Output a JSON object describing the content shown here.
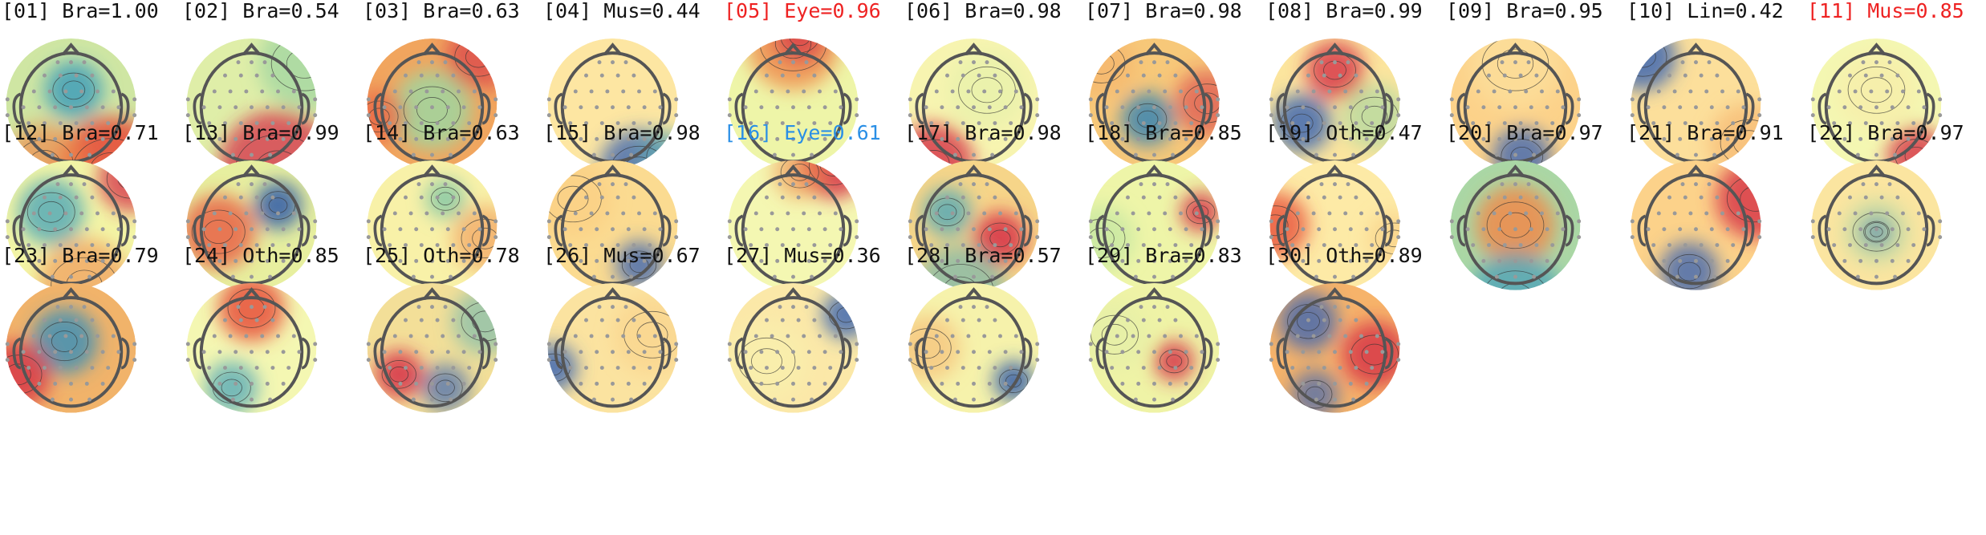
{
  "figure_title": "",
  "colors": {
    "normal_label": "#111111",
    "red_label": "#ee2222",
    "blue_label": "#2a8fe6",
    "head_outline": "#555555",
    "sensor_dot": "#999999",
    "contour": "#333333"
  },
  "components": [
    {
      "label": "[01] Bra=1.00",
      "color_class": ""
    },
    {
      "label": "[02] Bra=0.54",
      "color_class": ""
    },
    {
      "label": "[03] Bra=0.63",
      "color_class": ""
    },
    {
      "label": "[04] Mus=0.44",
      "color_class": ""
    },
    {
      "label": "[05] Eye=0.96",
      "color_class": "red"
    },
    {
      "label": "[06] Bra=0.98",
      "color_class": ""
    },
    {
      "label": "[07] Bra=0.98",
      "color_class": ""
    },
    {
      "label": "[08] Bra=0.99",
      "color_class": ""
    },
    {
      "label": "[09] Bra=0.95",
      "color_class": ""
    },
    {
      "label": "[10] Lin=0.42",
      "color_class": ""
    },
    {
      "label": "[11] Mus=0.85",
      "color_class": "red"
    },
    {
      "label": "[12] Bra=0.71",
      "color_class": ""
    },
    {
      "label": "[13] Bra=0.99",
      "color_class": ""
    },
    {
      "label": "[14] Bra=0.63",
      "color_class": ""
    },
    {
      "label": "[15] Bra=0.98",
      "color_class": ""
    },
    {
      "label": "[16] Eye=0.61",
      "color_class": "blue"
    },
    {
      "label": "[17] Bra=0.98",
      "color_class": ""
    },
    {
      "label": "[18] Bra=0.85",
      "color_class": ""
    },
    {
      "label": "[19] Oth=0.47",
      "color_class": ""
    },
    {
      "label": "[20] Bra=0.97",
      "color_class": ""
    },
    {
      "label": "[21] Bra=0.91",
      "color_class": ""
    },
    {
      "label": "[22] Bra=0.97",
      "color_class": ""
    },
    {
      "label": "[23] Bra=0.79",
      "color_class": ""
    },
    {
      "label": "[24] Oth=0.85",
      "color_class": ""
    },
    {
      "label": "[25] Oth=0.78",
      "color_class": ""
    },
    {
      "label": "[26] Mus=0.67",
      "color_class": ""
    },
    {
      "label": "[27] Mus=0.36",
      "color_class": ""
    },
    {
      "label": "[28] Bra=0.57",
      "color_class": ""
    },
    {
      "label": "[29] Bra=0.83",
      "color_class": ""
    },
    {
      "label": "[30] Oth=0.89",
      "color_class": ""
    }
  ]
}
